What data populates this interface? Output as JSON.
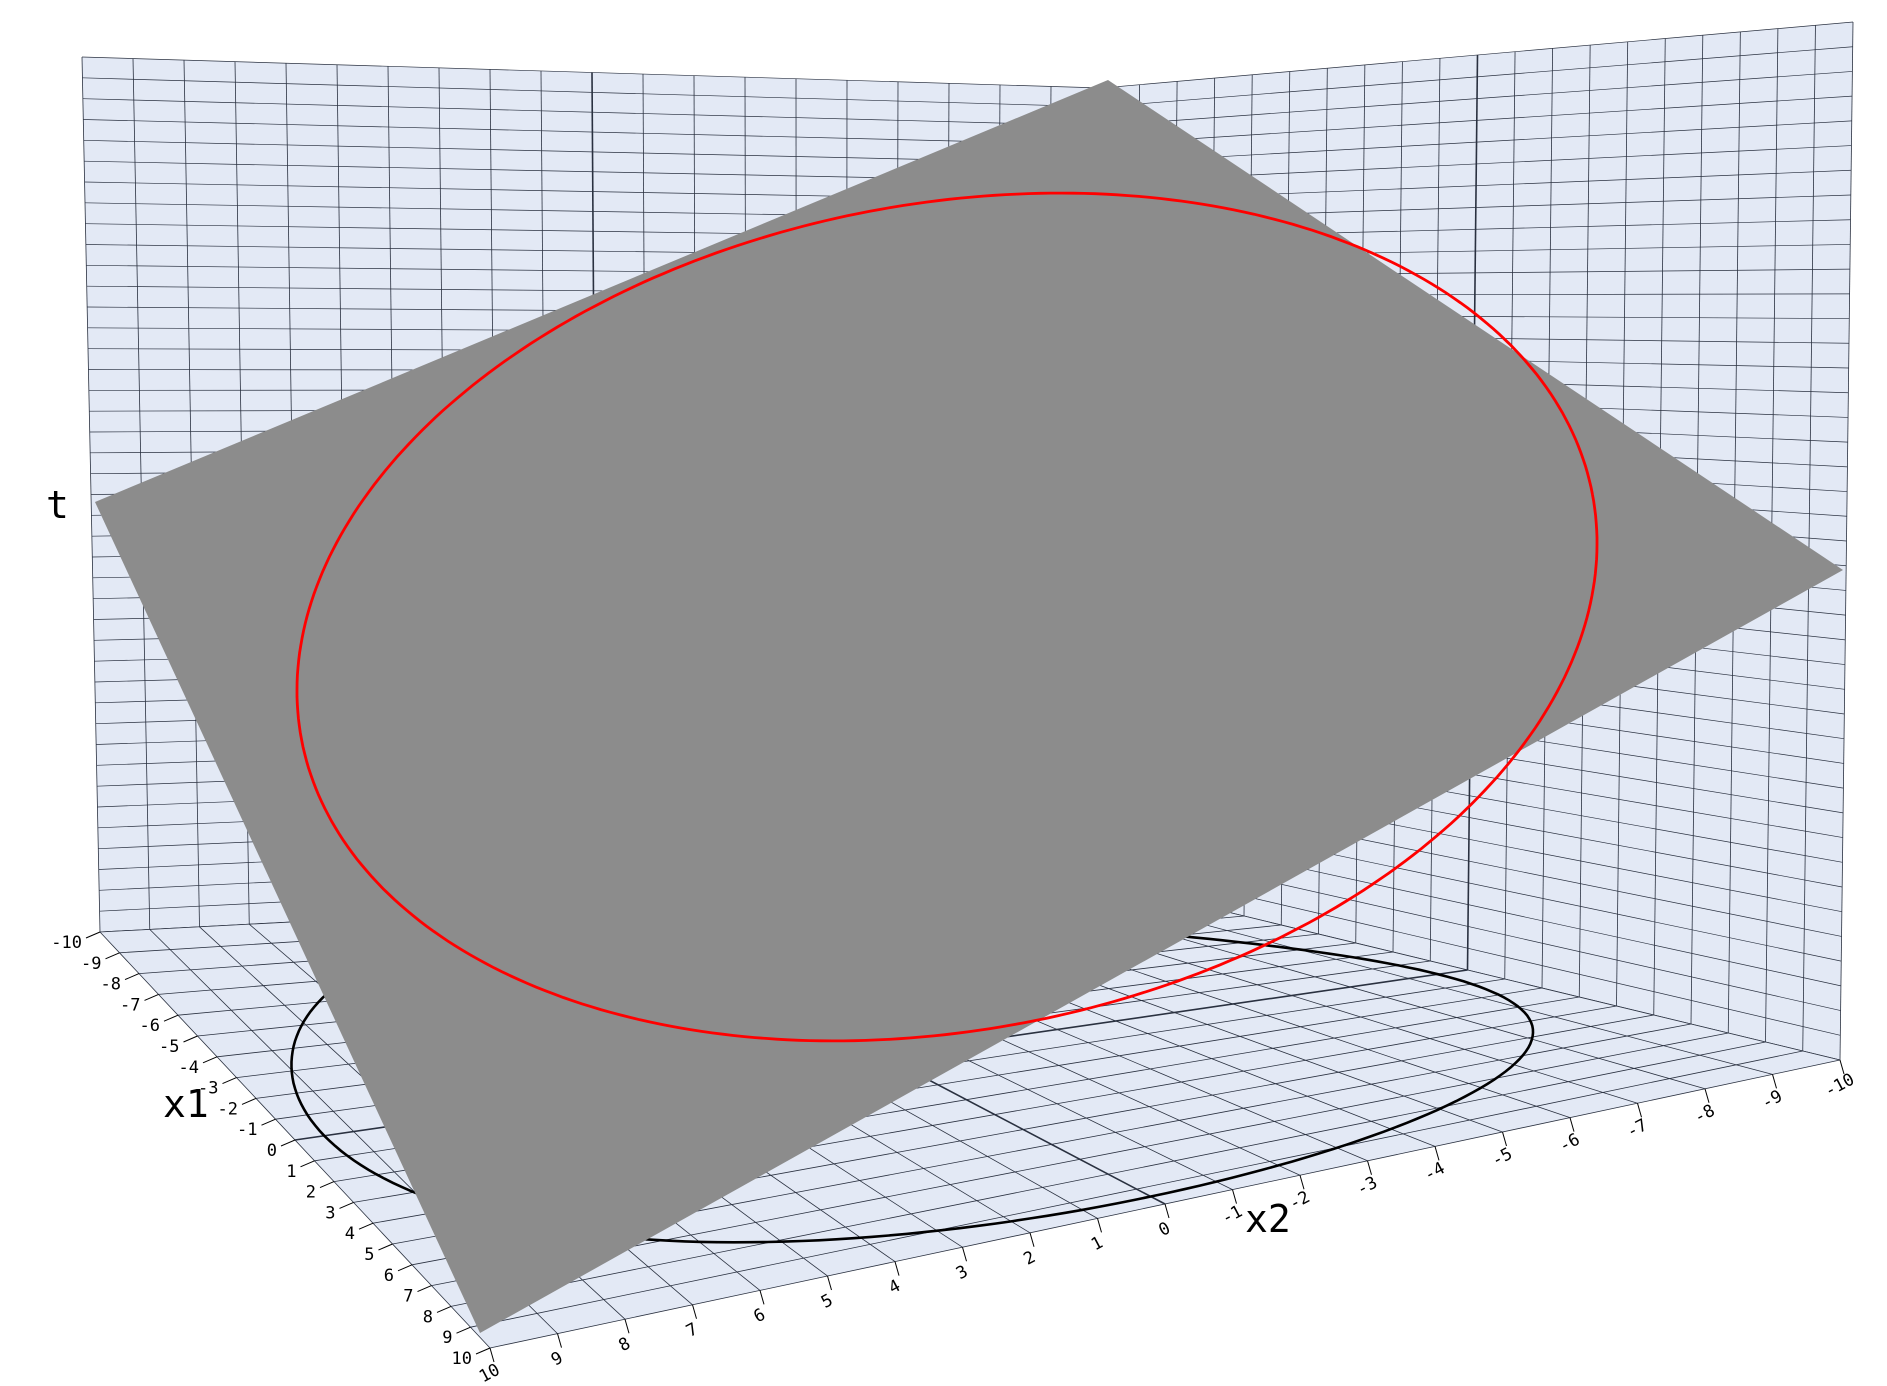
{
  "chart_data": {
    "type": "surface3d",
    "axes": {
      "x1": {
        "label": "x1",
        "range": [
          -10,
          10
        ]
      },
      "x2": {
        "label": "x2",
        "range": [
          -10,
          10
        ]
      },
      "t": {
        "label": "t"
      }
    },
    "x1_ticks": [
      "-10",
      "-9",
      "-8",
      "-7",
      "-6",
      "-5",
      "-4",
      "-3",
      "-2",
      "-1",
      "0",
      "1",
      "2",
      "3",
      "4",
      "5",
      "6",
      "7",
      "8",
      "9",
      "10"
    ],
    "x2_ticks": [
      "-10",
      "-9",
      "-8",
      "-7",
      "-6",
      "-5",
      "-4",
      "-3",
      "-2",
      "-1",
      "0",
      "1",
      "2",
      "3",
      "4",
      "5",
      "6",
      "7",
      "8",
      "9",
      "10"
    ],
    "grid": true,
    "series": [
      {
        "name": "plane",
        "kind": "surface",
        "color": "#8c8c8c"
      },
      {
        "name": "circle on plane",
        "kind": "curve",
        "color": "#ff0000",
        "radius": 9.5
      },
      {
        "name": "circle on floor",
        "kind": "curve",
        "color": "#000000",
        "radius": 9.5
      }
    ],
    "pane_color": "#e3e9f5",
    "grid_color": "#2a3140"
  }
}
